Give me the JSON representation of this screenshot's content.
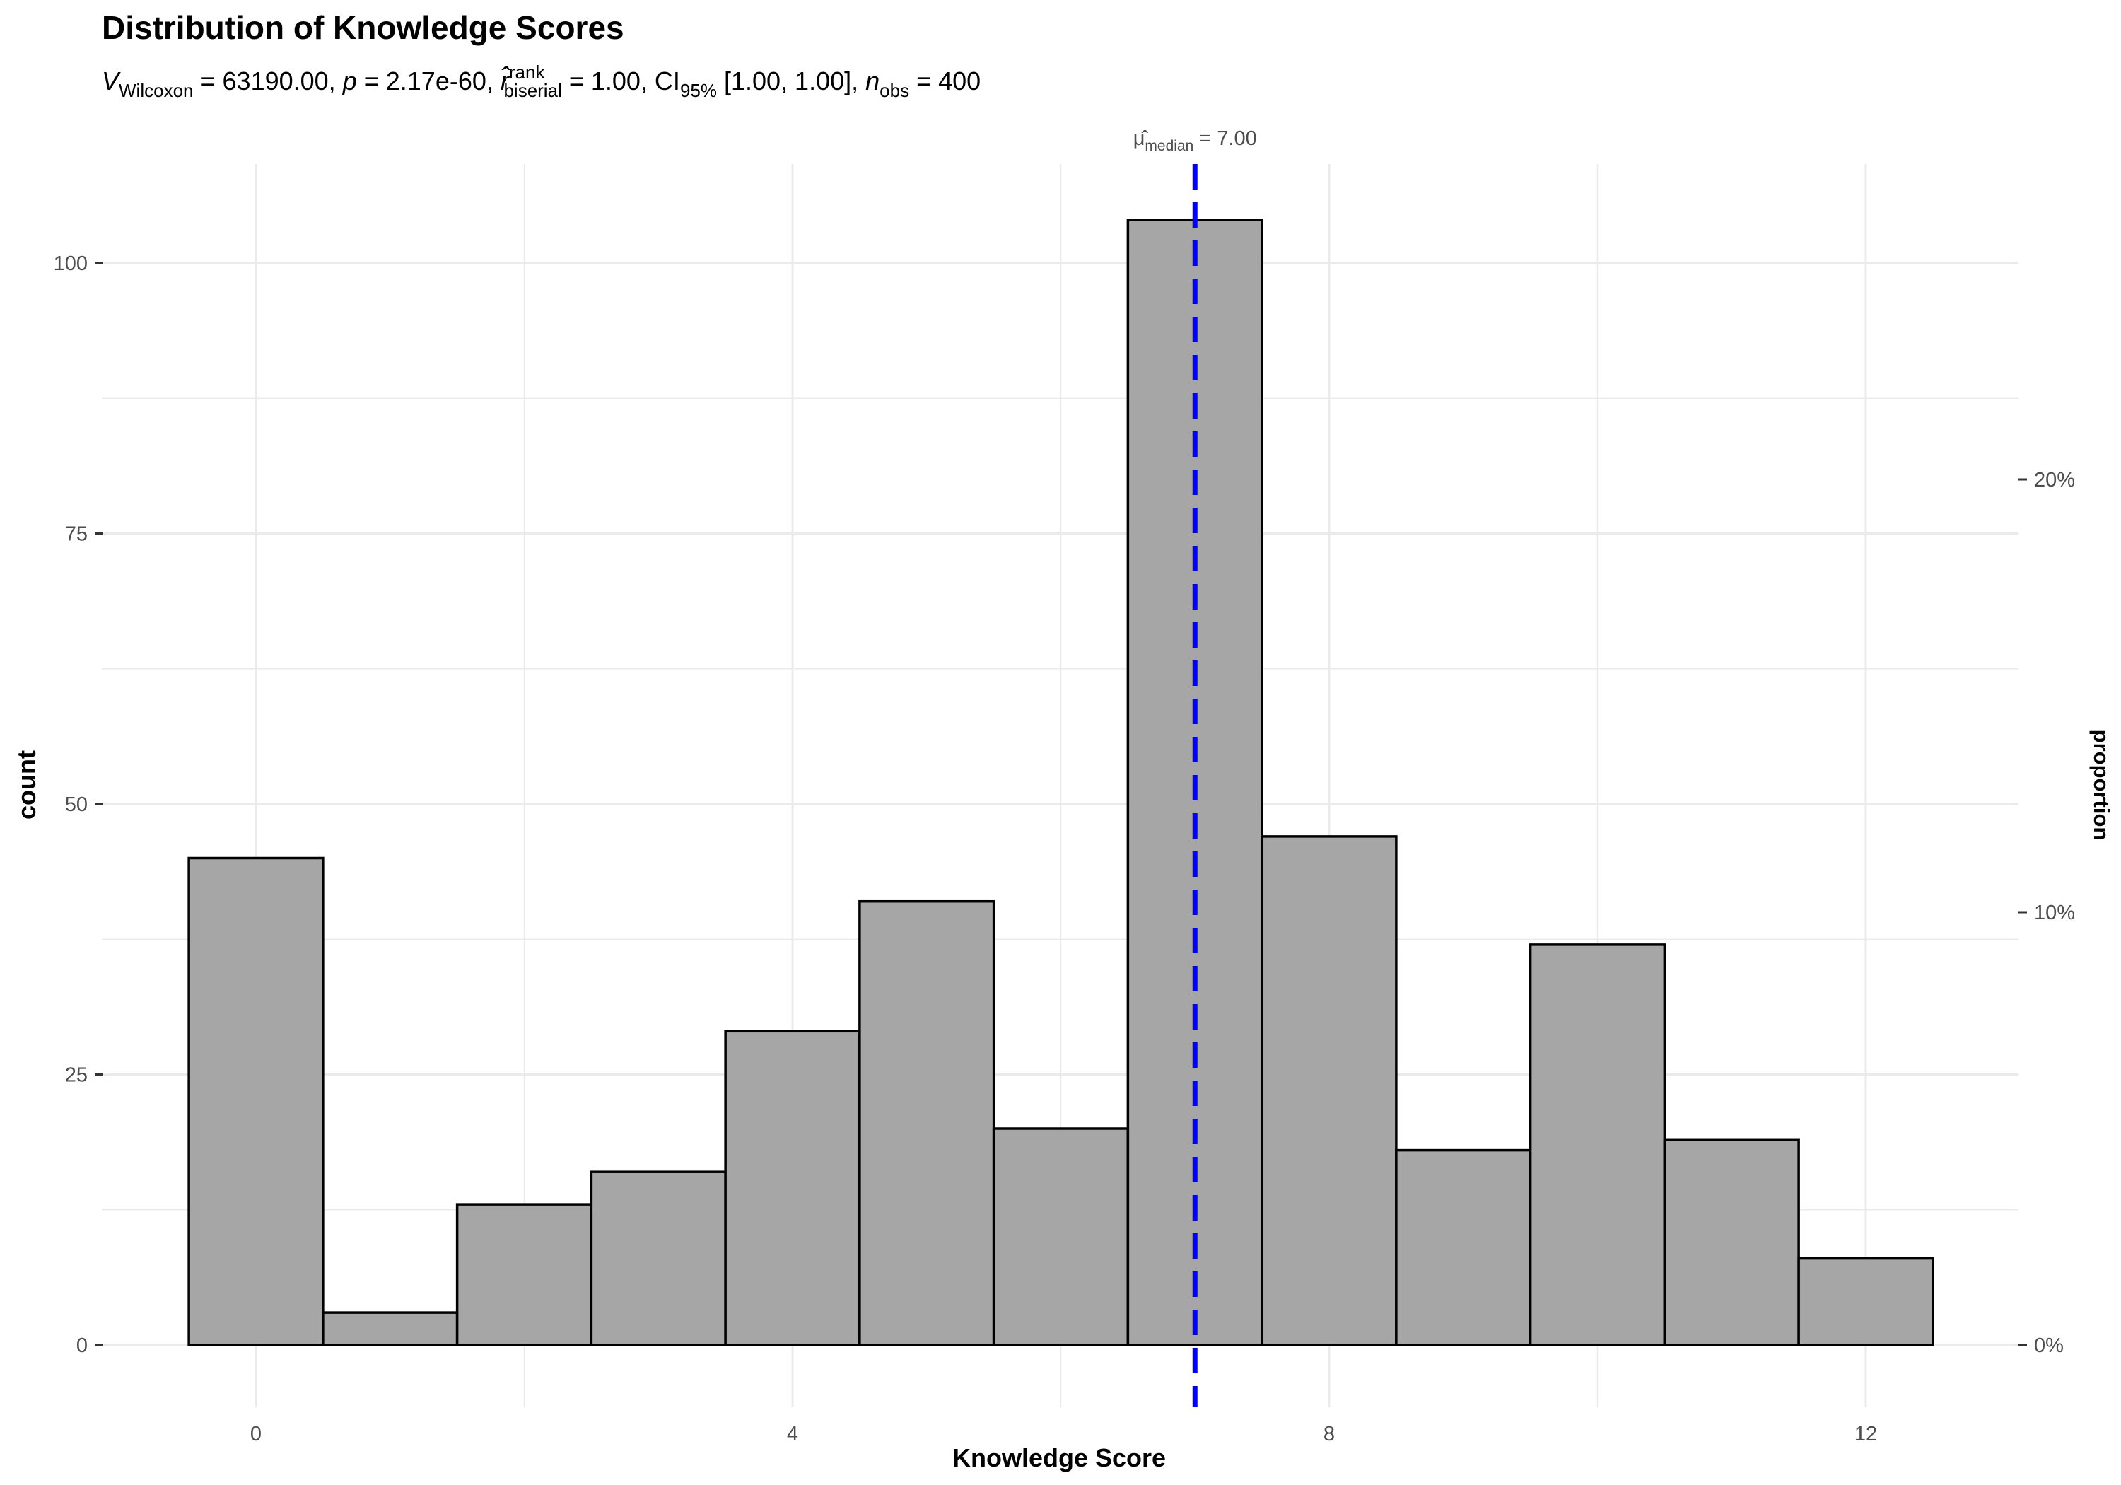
{
  "chart_data": {
    "type": "bar",
    "title": "Distribution of Knowledge Scores",
    "subtitle": {
      "stat_symbol": "V",
      "stat_sub": "Wilcoxon",
      "stat_value": " = 63190.00, ",
      "p_symbol": "p",
      "p_value": " = 2.17e-60, ",
      "r_symbol": "r̂",
      "r_sup": "rank",
      "r_sub": "biserial",
      "r_value": " = 1.00, CI",
      "ci_sub": "95%",
      "ci_value": " [1.00, 1.00], ",
      "n_symbol": "n",
      "n_sub": "obs",
      "n_value": " = 400"
    },
    "xlabel": "Knowledge Score",
    "ylabel": "count",
    "y2label": "proportion",
    "xlim": [
      -0.5,
      12.5
    ],
    "ylim": [
      0,
      104
    ],
    "x_ticks": [
      0,
      4,
      8,
      12
    ],
    "x_tick_labels": [
      "0",
      "4",
      "8",
      "12"
    ],
    "y_ticks": [
      0,
      25,
      50,
      75,
      100
    ],
    "y_tick_labels": [
      "0",
      "25",
      "50",
      "75",
      "100"
    ],
    "y2_ticks": [
      0,
      0.1,
      0.2
    ],
    "y2_tick_labels": [
      "0%",
      "10%",
      "20%"
    ],
    "n_total": 400,
    "x": [
      0,
      1,
      2,
      3,
      4,
      5,
      6,
      7,
      8,
      9,
      10,
      11,
      12
    ],
    "values": [
      45,
      3,
      13,
      16,
      29,
      41,
      20,
      104,
      47,
      18,
      37,
      19,
      8
    ],
    "bar_width": 1,
    "median_line": {
      "value": 7,
      "label_symbol": "μ̂",
      "label_sub": "median",
      "label_value": " = 7.00",
      "color": "#0000ff"
    },
    "bar_fill": "#a6a6a6",
    "bar_stroke": "#000000",
    "grid": true
  }
}
